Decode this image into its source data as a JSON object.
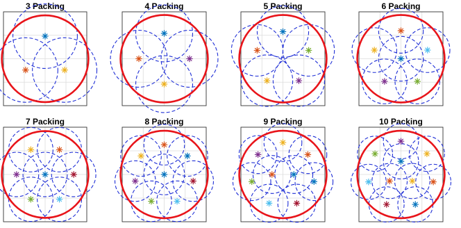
{
  "figure": {
    "colors": {
      "enclosing_circle": "#e8141a",
      "packed_circle": "#1f2fd6",
      "grid": "#dcdcdc",
      "axes": "#333333",
      "centers": [
        "#0072bd",
        "#d95319",
        "#edb120",
        "#7e2f8e",
        "#77ac30",
        "#4dbeee",
        "#a2142f"
      ]
    },
    "panels": [
      {
        "title": "3 Packing",
        "circle_count": 3
      },
      {
        "title": "4 Packing",
        "circle_count": 4
      },
      {
        "title": "5 Packing",
        "circle_count": 5
      },
      {
        "title": "6 Packing",
        "circle_count": 6
      },
      {
        "title": "7 Packing",
        "circle_count": 7
      },
      {
        "title": "8 Packing",
        "circle_count": 8
      },
      {
        "title": "9 Packing",
        "circle_count": 9
      },
      {
        "title": "10 Packing",
        "circle_count": 10
      }
    ]
  }
}
